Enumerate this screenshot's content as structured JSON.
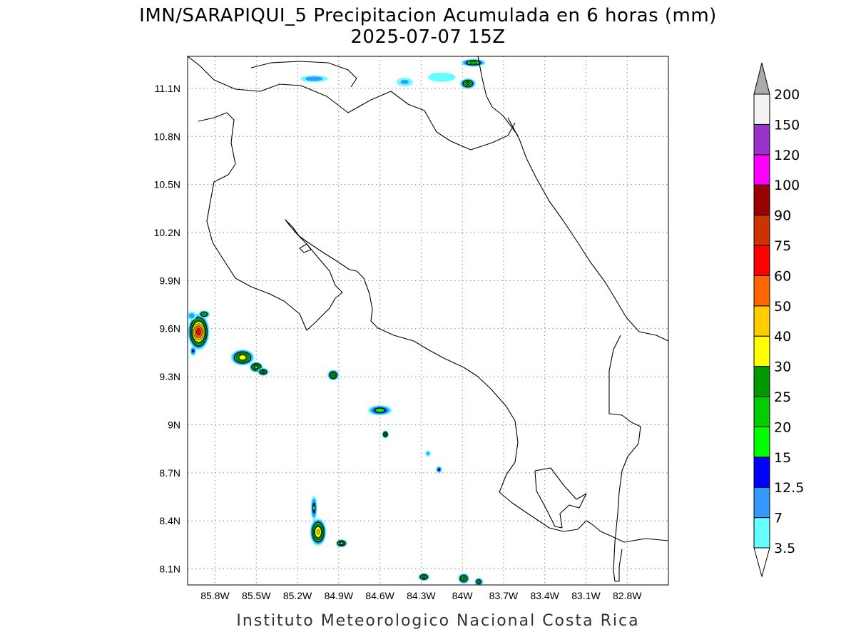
{
  "title_line1": "IMN/SARAPIQUI_5 Precipitacion Acumulada en 6 horas (mm)",
  "title_line2": "2025-07-07 15Z",
  "footer": "Instituto Meteorologico Nacional Costa Rica",
  "chart_data": {
    "type": "heatmap",
    "title": "IMN/SARAPIQUI_5 Precipitacion Acumulada en 6 horas (mm)",
    "subtitle": "2025-07-07 15Z",
    "xlim": [
      -86.0,
      -82.5
    ],
    "ylim": [
      8.0,
      11.3
    ],
    "x_ticks": [
      {
        "value": -85.8,
        "label": "85.8W"
      },
      {
        "value": -85.5,
        "label": "85.5W"
      },
      {
        "value": -85.2,
        "label": "85.2W"
      },
      {
        "value": -84.9,
        "label": "84.9W"
      },
      {
        "value": -84.6,
        "label": "84.6W"
      },
      {
        "value": -84.3,
        "label": "84.3W"
      },
      {
        "value": -84.0,
        "label": "84W"
      },
      {
        "value": -83.7,
        "label": "83.7W"
      },
      {
        "value": -83.4,
        "label": "83.4W"
      },
      {
        "value": -83.1,
        "label": "83.1W"
      },
      {
        "value": -82.8,
        "label": "82.8W"
      }
    ],
    "y_ticks": [
      {
        "value": 8.1,
        "label": "8.1N"
      },
      {
        "value": 8.4,
        "label": "8.4N"
      },
      {
        "value": 8.7,
        "label": "8.7N"
      },
      {
        "value": 9.0,
        "label": "9N"
      },
      {
        "value": 9.3,
        "label": "9.3N"
      },
      {
        "value": 9.6,
        "label": "9.6N"
      },
      {
        "value": 9.9,
        "label": "9.9N"
      },
      {
        "value": 10.2,
        "label": "10.2N"
      },
      {
        "value": 10.5,
        "label": "10.5N"
      },
      {
        "value": 10.8,
        "label": "10.8N"
      },
      {
        "value": 11.1,
        "label": "11.1N"
      }
    ],
    "grid": true,
    "levels": [
      {
        "value": 3.5,
        "label": "3.5",
        "color": "#66ffff"
      },
      {
        "value": 7,
        "label": "7",
        "color": "#3399ff"
      },
      {
        "value": 12.5,
        "label": "12.5",
        "color": "#0000ff"
      },
      {
        "value": 15,
        "label": "15",
        "color": "#00ff00"
      },
      {
        "value": 20,
        "label": "20",
        "color": "#00cc00"
      },
      {
        "value": 25,
        "label": "25",
        "color": "#009900"
      },
      {
        "value": 30,
        "label": "30",
        "color": "#ffff00"
      },
      {
        "value": 40,
        "label": "40",
        "color": "#ffcc00"
      },
      {
        "value": 50,
        "label": "50",
        "color": "#ff6600"
      },
      {
        "value": 60,
        "label": "60",
        "color": "#ff0000"
      },
      {
        "value": 75,
        "label": "75",
        "color": "#cc3300"
      },
      {
        "value": 90,
        "label": "90",
        "color": "#990000"
      },
      {
        "value": 100,
        "label": "100",
        "color": "#ff00ff"
      },
      {
        "value": 120,
        "label": "120",
        "color": "#9933cc"
      },
      {
        "value": 150,
        "label": "150",
        "color": "#f2f2f2"
      },
      {
        "value": 200,
        "label": "200",
        "color": "#aaaaaa"
      }
    ],
    "colorbar_placement": "right",
    "precip_cells": [
      {
        "lon": -85.92,
        "lat": 9.58,
        "peak": 65,
        "rlon": 0.09,
        "rlat": 0.13
      },
      {
        "lon": -85.88,
        "lat": 9.69,
        "peak": 22,
        "rlon": 0.05,
        "rlat": 0.03
      },
      {
        "lon": -85.97,
        "lat": 9.68,
        "peak": 9,
        "rlon": 0.05,
        "rlat": 0.04
      },
      {
        "lon": -85.96,
        "lat": 9.46,
        "peak": 13,
        "rlon": 0.03,
        "rlat": 0.04
      },
      {
        "lon": -85.6,
        "lat": 9.42,
        "peak": 35,
        "rlon": 0.1,
        "rlat": 0.06
      },
      {
        "lon": -85.5,
        "lat": 9.36,
        "peak": 30,
        "rlon": 0.06,
        "rlat": 0.04
      },
      {
        "lon": -85.45,
        "lat": 9.33,
        "peak": 25,
        "rlon": 0.05,
        "rlat": 0.03
      },
      {
        "lon": -85.05,
        "lat": 8.33,
        "peak": 40,
        "rlon": 0.07,
        "rlat": 0.1
      },
      {
        "lon": -85.08,
        "lat": 8.48,
        "peak": 15,
        "rlon": 0.03,
        "rlat": 0.1
      },
      {
        "lon": -84.88,
        "lat": 8.26,
        "peak": 30,
        "rlon": 0.05,
        "rlat": 0.03
      },
      {
        "lon": -84.94,
        "lat": 9.31,
        "peak": 28,
        "rlon": 0.05,
        "rlat": 0.04
      },
      {
        "lon": -84.6,
        "lat": 9.09,
        "peak": 18,
        "rlon": 0.11,
        "rlat": 0.04
      },
      {
        "lon": -84.56,
        "lat": 8.94,
        "peak": 25,
        "rlon": 0.03,
        "rlat": 0.03
      },
      {
        "lon": -84.17,
        "lat": 8.72,
        "peak": 13,
        "rlon": 0.03,
        "rlat": 0.03
      },
      {
        "lon": -84.25,
        "lat": 8.82,
        "peak": 8,
        "rlon": 0.03,
        "rlat": 0.03
      },
      {
        "lon": -84.28,
        "lat": 8.05,
        "peak": 26,
        "rlon": 0.05,
        "rlat": 0.03
      },
      {
        "lon": -83.99,
        "lat": 8.04,
        "peak": 26,
        "rlon": 0.05,
        "rlat": 0.04
      },
      {
        "lon": -83.88,
        "lat": 8.02,
        "peak": 20,
        "rlon": 0.04,
        "rlat": 0.03
      },
      {
        "lon": -83.96,
        "lat": 11.13,
        "peak": 25,
        "rlon": 0.07,
        "rlat": 0.04
      },
      {
        "lon": -84.15,
        "lat": 11.17,
        "peak": 6,
        "rlon": 0.17,
        "rlat": 0.05
      },
      {
        "lon": -84.42,
        "lat": 11.14,
        "peak": 8,
        "rlon": 0.09,
        "rlat": 0.04
      },
      {
        "lon": -85.08,
        "lat": 11.16,
        "peak": 10,
        "rlon": 0.14,
        "rlat": 0.03
      },
      {
        "lon": -83.92,
        "lat": 11.26,
        "peak": 22,
        "rlon": 0.11,
        "rlat": 0.03
      }
    ]
  }
}
